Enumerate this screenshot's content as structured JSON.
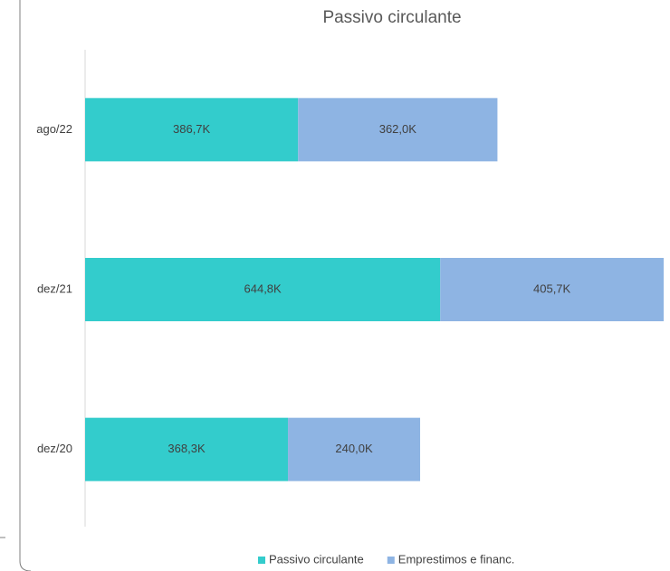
{
  "chart_data": {
    "type": "stacked_barh",
    "title": "Passivo circulante",
    "categories": [
      "ago/22",
      "dez/21",
      "dez/20"
    ],
    "series": [
      {
        "name": "Passivo circulante",
        "color": "#33cccc",
        "values": [
          386.7,
          644.8,
          368.3
        ],
        "value_labels": [
          "386,7K",
          "644,8K",
          "368,3K"
        ]
      },
      {
        "name": "Emprestimos e financ.",
        "color": "#8eb4e3",
        "values": [
          362.0,
          405.7,
          240.0
        ],
        "value_labels": [
          "362,0K",
          "405,7K",
          "240,0K"
        ]
      }
    ],
    "legend": "bottom"
  }
}
